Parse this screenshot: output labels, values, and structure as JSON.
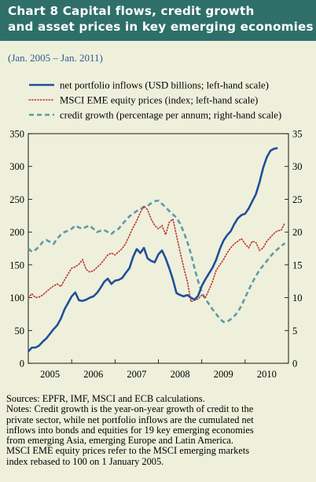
{
  "header": {
    "title_line1": "Chart 8 Capital flows, credit growth",
    "title_line2": "and asset prices in key emerging economies",
    "subtitle": "(Jan. 2005 – Jan. 2011)"
  },
  "colors": {
    "title_bg": "#2e6f6a",
    "background": "#eef0dc",
    "subtitle": "#2e5c8a",
    "portfolio_inflows": "#1f4f9a",
    "msci": "#c0312c",
    "credit_growth": "#5e9aa6"
  },
  "chart_data": {
    "type": "line",
    "x_labels": [
      "2005",
      "2006",
      "2007",
      "2008",
      "2009",
      "2010"
    ],
    "x_range": [
      "2005-01",
      "2011-01"
    ],
    "left_axis": {
      "ylim": [
        0,
        350
      ],
      "ticks": [
        "0",
        "50",
        "100",
        "150",
        "200",
        "250",
        "300",
        "350"
      ]
    },
    "right_axis": {
      "ylim": [
        0,
        35
      ],
      "ticks": [
        "0",
        "5",
        "10",
        "15",
        "20",
        "25",
        "30",
        "35"
      ]
    },
    "grid": false,
    "legend_placement": "top",
    "series": [
      {
        "name": "net portfolio inflows (USD billions; left-hand scale)",
        "style": "solid",
        "axis": "left",
        "points": [
          [
            "2005-01",
            18
          ],
          [
            "2005-02",
            24
          ],
          [
            "2005-03",
            24
          ],
          [
            "2005-04",
            27
          ],
          [
            "2005-05",
            33
          ],
          [
            "2005-06",
            38
          ],
          [
            "2005-07",
            45
          ],
          [
            "2005-08",
            52
          ],
          [
            "2005-09",
            58
          ],
          [
            "2005-10",
            68
          ],
          [
            "2005-11",
            82
          ],
          [
            "2005-12",
            92
          ],
          [
            "2006-01",
            102
          ],
          [
            "2006-02",
            108
          ],
          [
            "2006-03",
            96
          ],
          [
            "2006-04",
            95
          ],
          [
            "2006-05",
            97
          ],
          [
            "2006-06",
            100
          ],
          [
            "2006-07",
            102
          ],
          [
            "2006-08",
            107
          ],
          [
            "2006-09",
            115
          ],
          [
            "2006-10",
            124
          ],
          [
            "2006-11",
            129
          ],
          [
            "2006-12",
            121
          ],
          [
            "2007-01",
            126
          ],
          [
            "2007-02",
            127
          ],
          [
            "2007-03",
            130
          ],
          [
            "2007-04",
            138
          ],
          [
            "2007-05",
            145
          ],
          [
            "2007-06",
            162
          ],
          [
            "2007-07",
            174
          ],
          [
            "2007-08",
            168
          ],
          [
            "2007-09",
            176
          ],
          [
            "2007-10",
            160
          ],
          [
            "2007-11",
            156
          ],
          [
            "2007-12",
            154
          ],
          [
            "2008-01",
            166
          ],
          [
            "2008-02",
            172
          ],
          [
            "2008-03",
            160
          ],
          [
            "2008-04",
            145
          ],
          [
            "2008-05",
            128
          ],
          [
            "2008-06",
            107
          ],
          [
            "2008-07",
            104
          ],
          [
            "2008-08",
            102
          ],
          [
            "2008-09",
            104
          ],
          [
            "2008-10",
            100
          ],
          [
            "2008-11",
            97
          ],
          [
            "2008-12",
            103
          ],
          [
            "2009-01",
            118
          ],
          [
            "2009-02",
            128
          ],
          [
            "2009-03",
            137
          ],
          [
            "2009-04",
            146
          ],
          [
            "2009-05",
            158
          ],
          [
            "2009-06",
            174
          ],
          [
            "2009-07",
            187
          ],
          [
            "2009-08",
            195
          ],
          [
            "2009-09",
            201
          ],
          [
            "2009-10",
            212
          ],
          [
            "2009-11",
            221
          ],
          [
            "2009-12",
            226
          ],
          [
            "2010-01",
            228
          ],
          [
            "2010-02",
            236
          ],
          [
            "2010-03",
            247
          ],
          [
            "2010-04",
            258
          ],
          [
            "2010-05",
            276
          ],
          [
            "2010-06",
            298
          ],
          [
            "2010-07",
            314
          ],
          [
            "2010-08",
            324
          ],
          [
            "2010-09",
            327
          ],
          [
            "2010-10",
            328
          ]
        ]
      },
      {
        "name": "MSCI EME equity prices (index; left-hand scale)",
        "style": "dotted",
        "axis": "left",
        "points": [
          [
            "2005-01",
            100
          ],
          [
            "2005-02",
            106
          ],
          [
            "2005-03",
            100
          ],
          [
            "2005-04",
            101
          ],
          [
            "2005-05",
            104
          ],
          [
            "2005-06",
            109
          ],
          [
            "2005-07",
            114
          ],
          [
            "2005-08",
            118
          ],
          [
            "2005-09",
            121
          ],
          [
            "2005-10",
            117
          ],
          [
            "2005-11",
            127
          ],
          [
            "2005-12",
            136
          ],
          [
            "2006-01",
            145
          ],
          [
            "2006-02",
            147
          ],
          [
            "2006-03",
            151
          ],
          [
            "2006-04",
            158
          ],
          [
            "2006-05",
            143
          ],
          [
            "2006-06",
            139
          ],
          [
            "2006-07",
            141
          ],
          [
            "2006-08",
            146
          ],
          [
            "2006-09",
            151
          ],
          [
            "2006-10",
            158
          ],
          [
            "2006-11",
            165
          ],
          [
            "2006-12",
            168
          ],
          [
            "2007-01",
            165
          ],
          [
            "2007-02",
            170
          ],
          [
            "2007-03",
            175
          ],
          [
            "2007-04",
            183
          ],
          [
            "2007-05",
            195
          ],
          [
            "2007-06",
            207
          ],
          [
            "2007-07",
            217
          ],
          [
            "2007-08",
            230
          ],
          [
            "2007-09",
            240
          ],
          [
            "2007-10",
            234
          ],
          [
            "2007-11",
            220
          ],
          [
            "2007-12",
            210
          ],
          [
            "2008-01",
            205
          ],
          [
            "2008-02",
            210
          ],
          [
            "2008-03",
            196
          ],
          [
            "2008-04",
            215
          ],
          [
            "2008-05",
            220
          ],
          [
            "2008-06",
            195
          ],
          [
            "2008-07",
            170
          ],
          [
            "2008-08",
            146
          ],
          [
            "2008-09",
            125
          ],
          [
            "2008-10",
            94
          ],
          [
            "2008-11",
            96
          ],
          [
            "2008-12",
            98
          ],
          [
            "2009-01",
            104
          ],
          [
            "2009-02",
            100
          ],
          [
            "2009-03",
            112
          ],
          [
            "2009-04",
            125
          ],
          [
            "2009-05",
            142
          ],
          [
            "2009-06",
            150
          ],
          [
            "2009-07",
            158
          ],
          [
            "2009-08",
            168
          ],
          [
            "2009-09",
            176
          ],
          [
            "2009-10",
            182
          ],
          [
            "2009-11",
            186
          ],
          [
            "2009-12",
            190
          ],
          [
            "2010-01",
            182
          ],
          [
            "2010-02",
            176
          ],
          [
            "2010-03",
            186
          ],
          [
            "2010-04",
            184
          ],
          [
            "2010-05",
            172
          ],
          [
            "2010-06",
            176
          ],
          [
            "2010-07",
            186
          ],
          [
            "2010-08",
            192
          ],
          [
            "2010-09",
            198
          ],
          [
            "2010-10",
            202
          ],
          [
            "2010-11",
            203
          ],
          [
            "2010-12",
            214
          ]
        ]
      },
      {
        "name": "credit growth (percentage per annum; right-hand scale)",
        "style": "dashed",
        "axis": "right",
        "points": [
          [
            "2005-01",
            17.5
          ],
          [
            "2005-02",
            17.0
          ],
          [
            "2005-03",
            17.3
          ],
          [
            "2005-04",
            17.8
          ],
          [
            "2005-05",
            18.5
          ],
          [
            "2005-06",
            18.8
          ],
          [
            "2005-07",
            18.5
          ],
          [
            "2005-08",
            18.2
          ],
          [
            "2005-09",
            19.0
          ],
          [
            "2005-10",
            19.6
          ],
          [
            "2005-11",
            20.0
          ],
          [
            "2005-12",
            20.2
          ],
          [
            "2006-01",
            20.5
          ],
          [
            "2006-02",
            21.0
          ],
          [
            "2006-03",
            20.7
          ],
          [
            "2006-04",
            20.5
          ],
          [
            "2006-05",
            20.8
          ],
          [
            "2006-06",
            21.0
          ],
          [
            "2006-07",
            20.5
          ],
          [
            "2006-08",
            20.0
          ],
          [
            "2006-09",
            20.2
          ],
          [
            "2006-10",
            20.3
          ],
          [
            "2006-11",
            20.0
          ],
          [
            "2006-12",
            19.7
          ],
          [
            "2007-01",
            20.2
          ],
          [
            "2007-02",
            20.5
          ],
          [
            "2007-03",
            21.2
          ],
          [
            "2007-04",
            21.8
          ],
          [
            "2007-05",
            22.4
          ],
          [
            "2007-06",
            22.8
          ],
          [
            "2007-07",
            23.2
          ],
          [
            "2007-08",
            23.5
          ],
          [
            "2007-09",
            23.8
          ],
          [
            "2007-10",
            24.0
          ],
          [
            "2007-11",
            24.4
          ],
          [
            "2007-12",
            24.7
          ],
          [
            "2008-01",
            24.8
          ],
          [
            "2008-02",
            24.3
          ],
          [
            "2008-03",
            23.8
          ],
          [
            "2008-04",
            23.2
          ],
          [
            "2008-05",
            22.7
          ],
          [
            "2008-06",
            22.2
          ],
          [
            "2008-07",
            21.3
          ],
          [
            "2008-08",
            20.0
          ],
          [
            "2008-09",
            18.5
          ],
          [
            "2008-10",
            16.7
          ],
          [
            "2008-11",
            14.5
          ],
          [
            "2008-12",
            12.5
          ],
          [
            "2009-01",
            10.8
          ],
          [
            "2009-02",
            9.8
          ],
          [
            "2009-03",
            9.0
          ],
          [
            "2009-04",
            8.2
          ],
          [
            "2009-05",
            7.5
          ],
          [
            "2009-06",
            6.8
          ],
          [
            "2009-07",
            6.3
          ],
          [
            "2009-08",
            6.3
          ],
          [
            "2009-09",
            6.7
          ],
          [
            "2009-10",
            7.2
          ],
          [
            "2009-11",
            7.8
          ],
          [
            "2009-12",
            8.8
          ],
          [
            "2010-01",
            10.0
          ],
          [
            "2010-02",
            11.2
          ],
          [
            "2010-03",
            12.3
          ],
          [
            "2010-04",
            13.3
          ],
          [
            "2010-05",
            14.2
          ],
          [
            "2010-06",
            14.9
          ],
          [
            "2010-07",
            15.6
          ],
          [
            "2010-08",
            16.3
          ],
          [
            "2010-09",
            16.9
          ],
          [
            "2010-10",
            17.4
          ],
          [
            "2010-11",
            17.9
          ],
          [
            "2010-12",
            18.3
          ]
        ]
      }
    ]
  },
  "notes": {
    "sources": "Sources: EPFR, IMF, MSCI and ECB calculations.",
    "notes_line1": "Notes: Credit growth is the year-on-year growth of credit to the",
    "notes_line2": "private sector, while net portfolio inflows are the cumulated net",
    "notes_line3": "inflows into bonds and equities for 19 key emerging economies",
    "notes_line4": "from emerging Asia, emerging Europe and Latin America.",
    "notes_line5": "MSCI EME equity prices refer to the MSCI emerging markets",
    "notes_line6": "index rebased to 100 on 1 January 2005."
  }
}
